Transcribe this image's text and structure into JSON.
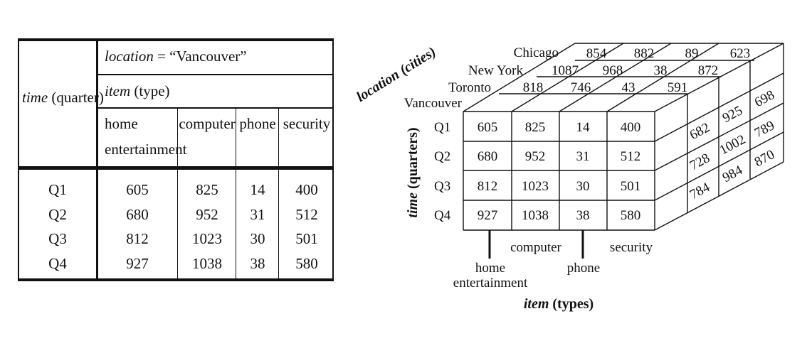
{
  "table": {
    "header_time_label": "time",
    "header_time_unit": " (quarter)",
    "location_key": "location",
    "location_eq": " = ",
    "location_value": "“Vancouver”",
    "item_key": "item",
    "item_unit": " (type)",
    "columns": [
      [
        "home",
        "entertainment"
      ],
      [
        "computer"
      ],
      [
        "phone"
      ],
      [
        "security"
      ]
    ],
    "rows": [
      {
        "quarter": "Q1",
        "values": [
          "605",
          "825",
          "14",
          "400"
        ]
      },
      {
        "quarter": "Q2",
        "values": [
          "680",
          "952",
          "31",
          "512"
        ]
      },
      {
        "quarter": "Q3",
        "values": [
          "812",
          "1023",
          "30",
          "501"
        ]
      },
      {
        "quarter": "Q4",
        "values": [
          "927",
          "1038",
          "38",
          "580"
        ]
      }
    ]
  },
  "cube": {
    "location_axis_label": "location (cities)",
    "time_axis_key": "time",
    "time_axis_unit": " (quarters)",
    "item_axis_key": "item",
    "item_axis_unit": " (types)",
    "cities": [
      "Vancouver",
      "Toronto",
      "New York",
      "Chicago"
    ],
    "quarters": [
      "Q1",
      "Q2",
      "Q3",
      "Q4"
    ],
    "item_labels": {
      "computer": "computer",
      "security": "security",
      "home_1": "home",
      "home_2": "entertainment",
      "phone": "phone"
    },
    "front": [
      [
        "605",
        "825",
        "14",
        "400"
      ],
      [
        "680",
        "952",
        "31",
        "512"
      ],
      [
        "812",
        "1023",
        "30",
        "501"
      ],
      [
        "927",
        "1038",
        "38",
        "580"
      ]
    ],
    "top": {
      "toronto": [
        "818",
        "746",
        "43",
        "591"
      ],
      "new_york": [
        "1087",
        "968",
        "38",
        "872"
      ],
      "chicago": [
        "854",
        "882",
        "89",
        "623"
      ]
    },
    "side": {
      "toronto": [
        "682",
        "728",
        "784"
      ],
      "new_york": [
        "925",
        "1002",
        "984"
      ],
      "chicago": [
        "698",
        "789",
        "870"
      ]
    }
  }
}
